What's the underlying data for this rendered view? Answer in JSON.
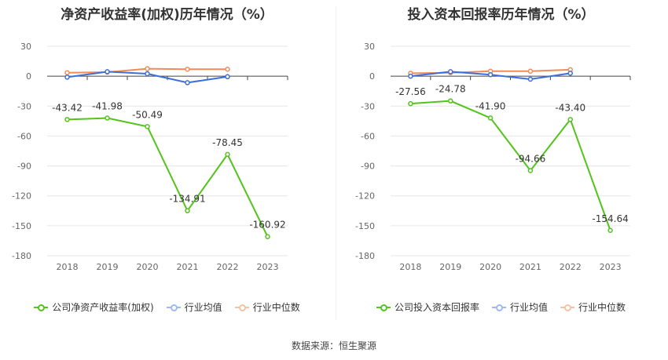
{
  "chart_data": [
    {
      "type": "line",
      "title": "净资产收益率(加权)历年情况（%）",
      "categories": [
        "2018",
        "2019",
        "2020",
        "2021",
        "2022",
        "2023"
      ],
      "ylim": [
        -180,
        30
      ],
      "yticks": [
        30,
        0,
        -30,
        -60,
        -90,
        -120,
        -150,
        -180
      ],
      "grid": true,
      "legend_position": "bottom",
      "series": [
        {
          "name": "公司净资产收益率(加权)",
          "color": "#52c41a",
          "labeled": true,
          "values": [
            -43.42,
            -41.98,
            -50.49,
            -134.91,
            -78.45,
            -160.92
          ],
          "labels": [
            "-43.42",
            "-41.98",
            "-50.49",
            "-134.91",
            "-78.45",
            "-160.92"
          ]
        },
        {
          "name": "行业均值",
          "color": "#3d6fd8",
          "labeled": false,
          "values": [
            -1,
            4.5,
            2.5,
            -6.5,
            -0.5,
            null
          ]
        },
        {
          "name": "行业中位数",
          "color": "#f08c5a",
          "labeled": false,
          "values": [
            3.5,
            4,
            7.5,
            7,
            7,
            null
          ]
        }
      ]
    },
    {
      "type": "line",
      "title": "投入资本回报率历年情况（%）",
      "categories": [
        "2018",
        "2019",
        "2020",
        "2021",
        "2022",
        "2023"
      ],
      "ylim": [
        -180,
        30
      ],
      "yticks": [
        30,
        0,
        -30,
        -60,
        -90,
        -120,
        -150,
        -180
      ],
      "grid": true,
      "legend_position": "bottom",
      "series": [
        {
          "name": "公司投入资本回报率",
          "color": "#52c41a",
          "labeled": true,
          "values": [
            -27.56,
            -24.78,
            -41.9,
            -94.66,
            -43.4,
            -154.64
          ],
          "labels": [
            "-27.56",
            "-24.78",
            "-41.90",
            "-94.66",
            "-43.40",
            "-154.64"
          ]
        },
        {
          "name": "行业均值",
          "color": "#3d6fd8",
          "labeled": false,
          "values": [
            0,
            4.5,
            1.5,
            -3,
            3,
            null
          ]
        },
        {
          "name": "行业中位数",
          "color": "#f08c5a",
          "labeled": false,
          "values": [
            3,
            3.5,
            5,
            5,
            6.5,
            null
          ]
        }
      ]
    }
  ],
  "legend_left": [
    "公司净资产收益率(加权)",
    "行业均值",
    "行业中位数"
  ],
  "legend_right": [
    "公司投入资本回报率",
    "行业均值",
    "行业中位数"
  ],
  "source": "数据来源：恒生聚源"
}
